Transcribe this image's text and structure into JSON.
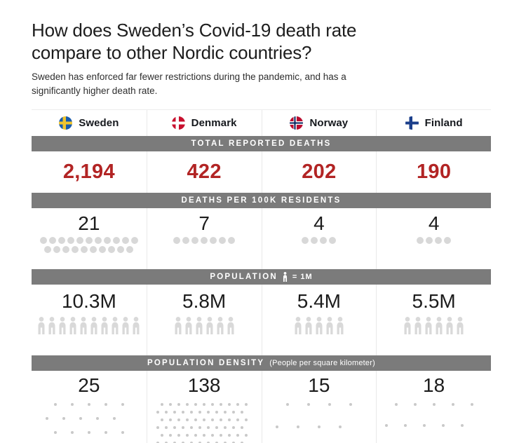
{
  "header": {
    "title": "How does Sweden’s Covid-19 death rate compare to other Nordic countries?",
    "subtitle": "Sweden has enforced far fewer restrictions during the pandemic, and has a significantly higher death rate."
  },
  "colors": {
    "band_gray": "#7b7b7b",
    "value_red": "#b22424",
    "rate_dot_gray": "#d8d8d8",
    "person_icon_gray": "#d9d9d9",
    "density_dot_gray": "#c9c9c9"
  },
  "sections": {
    "total_deaths": {
      "label": "TOTAL REPORTED DEATHS"
    },
    "per_100k": {
      "label": "DEATHS PER 100K RESIDENTS"
    },
    "population": {
      "label": "POPULATION",
      "legend": "= 1M",
      "legend_icon": "person-icon"
    },
    "density": {
      "label": "POPULATION DENSITY",
      "sublabel": "(People per square kilometer)"
    }
  },
  "countries": [
    {
      "name": "Sweden",
      "flag": {
        "icon": "sweden-flag-icon",
        "bg": "#1a5dad",
        "cross": "#f0c52e"
      },
      "total_deaths": "2,194",
      "per_100k": "21",
      "per_100k_dots": 21,
      "population": "10.3M",
      "population_icons": 10,
      "density": "25",
      "density_grid": {
        "per_row": 5,
        "rows": 4,
        "col_gap": 24,
        "row_gap": 20
      }
    },
    {
      "name": "Denmark",
      "flag": {
        "icon": "denmark-flag-icon",
        "bg": "#c8102e",
        "cross": "#ffffff"
      },
      "total_deaths": "422",
      "per_100k": "7",
      "per_100k_dots": 7,
      "population": "5.8M",
      "population_icons": 6,
      "density": "138",
      "density_grid": {
        "per_row": 11,
        "rows": 7,
        "col_gap": 12,
        "row_gap": 11
      }
    },
    {
      "name": "Norway",
      "flag": {
        "icon": "norway-flag-icon",
        "bg": "#ba0c2f",
        "cross": "#ffffff",
        "inner_cross": "#00205b"
      },
      "total_deaths": "202",
      "per_100k": "4",
      "per_100k_dots": 4,
      "population": "5.4M",
      "population_icons": 5,
      "density": "15",
      "density_grid": {
        "per_row": 4,
        "rows": 3,
        "col_gap": 30,
        "row_gap": 32
      }
    },
    {
      "name": "Finland",
      "flag": {
        "icon": "finland-flag-icon",
        "bg": "#ffffff",
        "cross": "#1b3f8b"
      },
      "total_deaths": "190",
      "per_100k": "4",
      "per_100k_dots": 4,
      "population": "5.5M",
      "population_icons": 6,
      "density": "18",
      "density_grid": {
        "per_row": 5,
        "rows": 3,
        "col_gap": 27,
        "row_gap": 30
      }
    }
  ],
  "chart_data": {
    "type": "table",
    "title": "How does Sweden’s Covid-19 death rate compare to other Nordic countries?",
    "subtitle": "Sweden has enforced far fewer restrictions during the pandemic, and has a significantly higher death rate.",
    "categories": [
      "Sweden",
      "Denmark",
      "Norway",
      "Finland"
    ],
    "series": [
      {
        "name": "Total reported deaths",
        "values": [
          2194,
          422,
          202,
          190
        ]
      },
      {
        "name": "Deaths per 100K residents",
        "values": [
          21,
          7,
          4,
          4
        ]
      },
      {
        "name": "Population (millions)",
        "values": [
          10.3,
          5.8,
          5.4,
          5.5
        ]
      },
      {
        "name": "Population density (people per square kilometer)",
        "values": [
          25,
          138,
          15,
          18
        ]
      }
    ],
    "legend": "1 person icon = 1M population"
  }
}
